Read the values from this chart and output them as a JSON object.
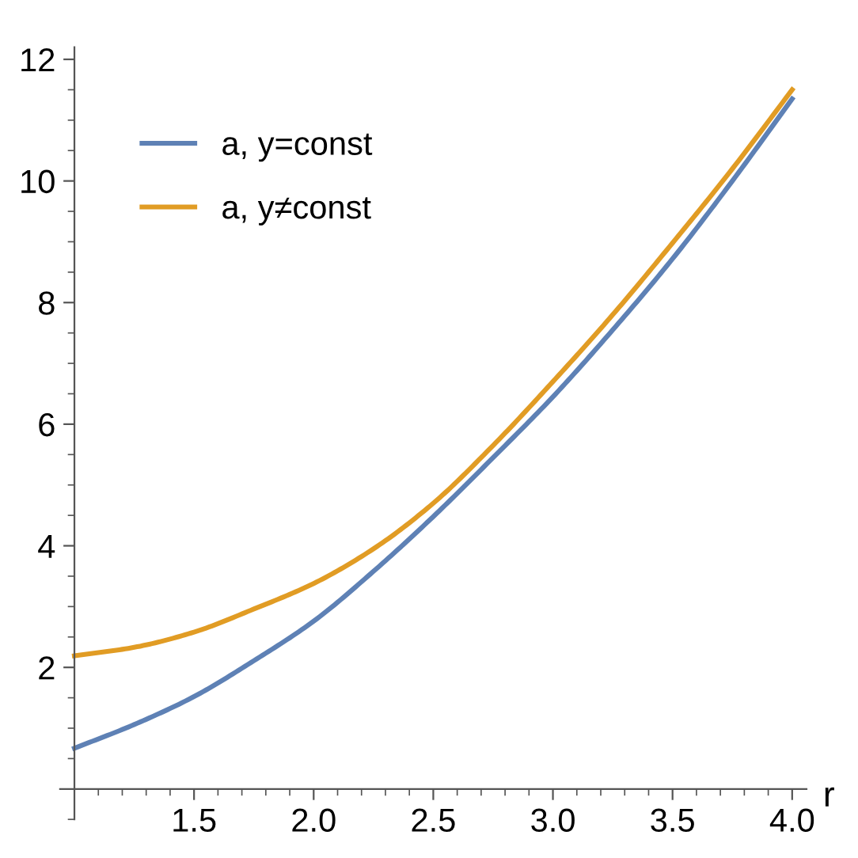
{
  "chart_data": {
    "type": "line",
    "xlabel": "r",
    "xlim": [
      0.94,
      4.06
    ],
    "ylim": [
      -0.5,
      12.2
    ],
    "xticks": [
      1.5,
      {
        "value": 2,
        "label": "2.0"
      },
      2.5,
      {
        "value": 3,
        "label": "3.0"
      },
      3.5,
      {
        "value": 4,
        "label": "4.0"
      }
    ],
    "yticks": [
      2,
      4,
      6,
      8,
      10,
      12
    ],
    "grid": false,
    "legend": "top left",
    "x": [
      1,
      1.25,
      1.5,
      1.75,
      2,
      2.25,
      2.5,
      2.75,
      3,
      3.25,
      3.5,
      3.75,
      4
    ],
    "series": [
      {
        "name": "a, y=const",
        "color": "#5e81b5",
        "values": [
          0.67,
          1.06,
          1.52,
          2.11,
          2.76,
          3.58,
          4.48,
          5.45,
          6.45,
          7.55,
          8.72,
          10.0,
          11.35
        ]
      },
      {
        "name": "a, y≠const",
        "color": "#e19c24",
        "values": [
          2.19,
          2.33,
          2.58,
          2.96,
          3.38,
          3.95,
          4.7,
          5.65,
          6.7,
          7.8,
          8.98,
          10.2,
          11.5
        ]
      }
    ]
  }
}
